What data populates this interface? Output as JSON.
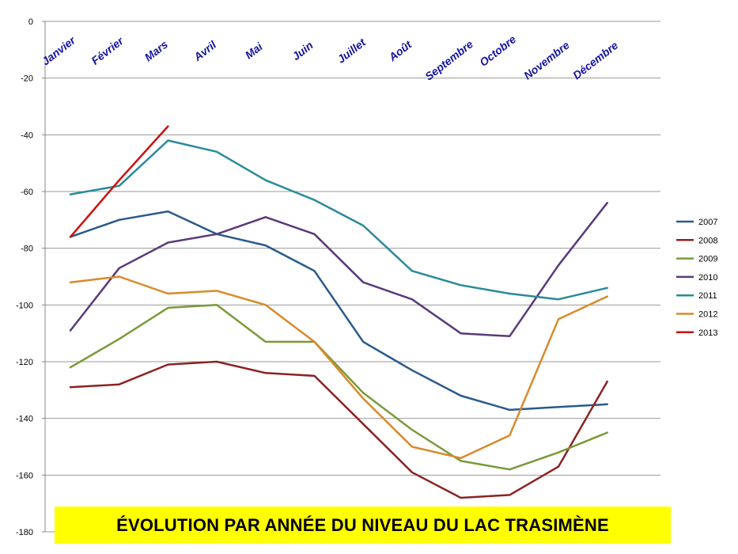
{
  "chart_data": {
    "type": "line",
    "title": "ÉVOLUTION PAR ANNÉE DU NIVEAU DU LAC TRASIMÈNE",
    "categories": [
      "Janvier",
      "Février",
      "Mars",
      "Avril",
      "Mai",
      "Juin",
      "Juillet",
      "Août",
      "Septembre",
      "Octobre",
      "Novembre",
      "Décembre"
    ],
    "y_ticks": [
      "0",
      "-20",
      "-40",
      "-60",
      "-80",
      "-100",
      "-120",
      "-140",
      "-160",
      "-180"
    ],
    "ylim": [
      -180,
      0
    ],
    "grid": true,
    "legend_position": "right",
    "series": [
      {
        "name": "2007",
        "color": "#2a5a8c",
        "values": [
          -76,
          -70,
          -67,
          -75,
          -79,
          -88,
          -113,
          -123,
          -132,
          -137,
          -136,
          -135
        ]
      },
      {
        "name": "2008",
        "color": "#8b2323",
        "values": [
          -129,
          -128,
          -121,
          -120,
          -124,
          -125,
          -142,
          -159,
          -168,
          -167,
          -157,
          -127
        ]
      },
      {
        "name": "2009",
        "color": "#7a9a3a",
        "values": [
          -122,
          -112,
          -101,
          -100,
          -113,
          -113,
          -131,
          -144,
          -155,
          -158,
          -152,
          -145
        ]
      },
      {
        "name": "2010",
        "color": "#5a3a7a",
        "values": [
          -109,
          -87,
          -78,
          -75,
          -69,
          -75,
          -92,
          -98,
          -110,
          -111,
          -86,
          -64
        ]
      },
      {
        "name": "2011",
        "color": "#2a8a9a",
        "values": [
          -61,
          -58,
          -42,
          -46,
          -56,
          -63,
          -72,
          -88,
          -93,
          -96,
          -98,
          -94
        ]
      },
      {
        "name": "2012",
        "color": "#d98a2a",
        "values": [
          -92,
          -90,
          -96,
          -95,
          -100,
          -113,
          -133,
          -150,
          -154,
          -146,
          -105,
          -97
        ]
      },
      {
        "name": "2013",
        "color": "#cc1111",
        "values": [
          -76,
          -56,
          -37,
          null,
          null,
          null,
          null,
          null,
          null,
          null,
          null,
          null
        ]
      }
    ]
  }
}
